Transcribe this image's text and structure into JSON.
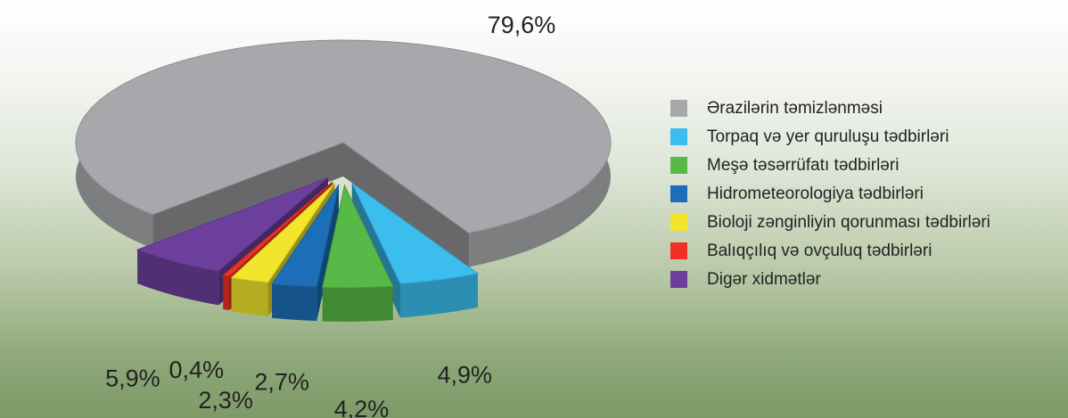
{
  "chart_data": {
    "type": "pie",
    "categories": [
      "Ərazilərin təmizlənməsi",
      "Torpaq və yer quruluşu tədbirləri",
      "Meşə təsərrüfatı tədbirləri",
      "Hidrometeorologiya tədbirləri",
      "Bioloji zənginliyin qorunması tədbirləri",
      "Balıqçılıq və ovçuluq tədbirləri",
      "Digər xidmətlər"
    ],
    "values": [
      79.6,
      4.9,
      4.2,
      2.7,
      2.3,
      0.4,
      5.9
    ],
    "value_labels": [
      "79,6%",
      "4,9%",
      "4,2%",
      "2,7%",
      "2,3%",
      "0,4%",
      "5,9%"
    ],
    "colors": [
      "#a7a8ab",
      "#3bbdee",
      "#57b947",
      "#1c6fb7",
      "#f2e52c",
      "#ee3124",
      "#6c3f9c"
    ]
  }
}
